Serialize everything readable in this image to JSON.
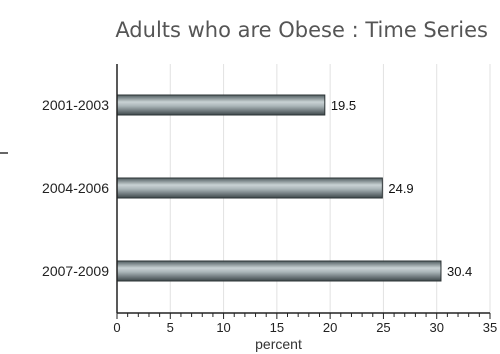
{
  "chart_data": {
    "type": "bar",
    "orientation": "horizontal",
    "title": "Adults who are Obese : Time Series",
    "categories": [
      "2001-2003",
      "2004-2006",
      "2007-2009"
    ],
    "values": [
      19.5,
      24.9,
      30.4
    ],
    "value_labels": [
      "19.5",
      "24.9",
      "30.4"
    ],
    "xlabel": "percent",
    "ylabel": "",
    "xlim": [
      0,
      35
    ],
    "xticks": [
      0,
      5,
      10,
      15,
      20,
      25,
      30,
      35
    ],
    "grid": true,
    "legend": "none",
    "bar_color": "#7d8b8f"
  }
}
